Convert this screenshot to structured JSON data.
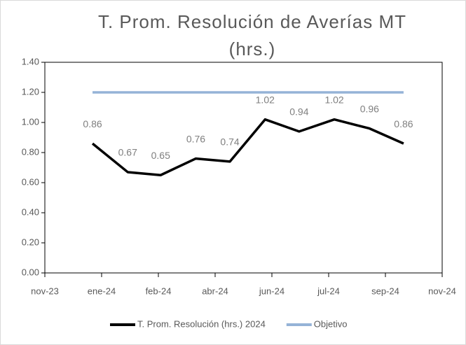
{
  "chart_data": {
    "type": "line",
    "title": "T. Prom. Resolución de Averías MT (hrs.)",
    "x": [
      "2024-01",
      "2024-02",
      "2024-03",
      "2024-04",
      "2024-05",
      "2024-06",
      "2024-07",
      "2024-08",
      "2024-09",
      "2024-10"
    ],
    "series": [
      {
        "name": "T. Prom. Resolución (hrs.) 2024",
        "color": "#000000",
        "values": [
          0.86,
          0.67,
          0.65,
          0.76,
          0.74,
          1.02,
          0.94,
          1.02,
          0.96,
          0.86
        ]
      },
      {
        "name": "Objetivo",
        "color": "#95b3d7",
        "values": [
          1.2,
          1.2,
          1.2,
          1.2,
          1.2,
          1.2,
          1.2,
          1.2,
          1.2,
          1.2
        ]
      }
    ],
    "xlim": [
      "2023-11-20",
      "2024-11-04"
    ],
    "xticks": [
      {
        "value": "2023-11-20",
        "label": "nov-23"
      },
      {
        "value": "2024-01-09",
        "label": "ene-24"
      },
      {
        "value": "2024-02-28",
        "label": "feb-24"
      },
      {
        "value": "2024-04-18",
        "label": "abr-24"
      },
      {
        "value": "2024-06-07",
        "label": "jun-24"
      },
      {
        "value": "2024-07-27",
        "label": "jul-24"
      },
      {
        "value": "2024-09-15",
        "label": "sep-24"
      },
      {
        "value": "2024-11-04",
        "label": "nov-24"
      }
    ],
    "ylim": [
      0,
      1.4
    ],
    "yticks": [
      {
        "value": 0,
        "label": "0.00"
      },
      {
        "value": 0.2,
        "label": "0.20"
      },
      {
        "value": 0.4,
        "label": "0.40"
      },
      {
        "value": 0.6,
        "label": "0.60"
      },
      {
        "value": 0.8,
        "label": "0.80"
      },
      {
        "value": 1.0,
        "label": "1.00"
      },
      {
        "value": 1.2,
        "label": "1.20"
      },
      {
        "value": 1.4,
        "label": "1.40"
      }
    ],
    "grid": false,
    "legend": "bottom"
  }
}
